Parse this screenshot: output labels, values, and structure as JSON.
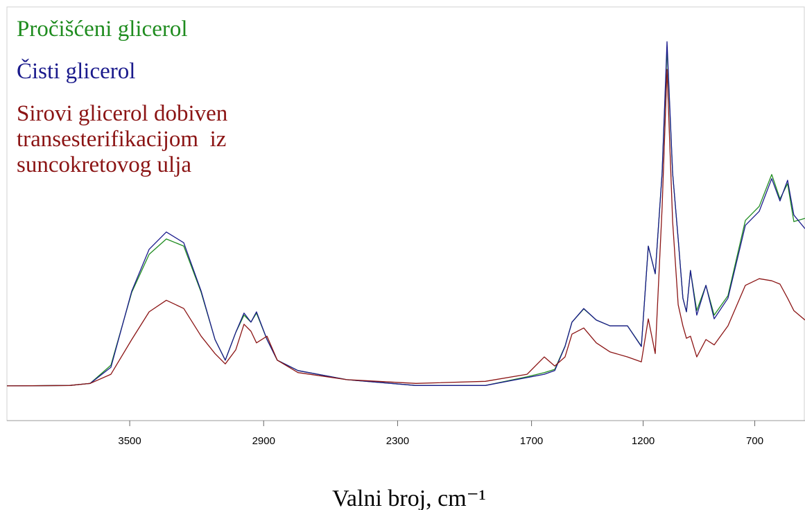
{
  "chart_data": {
    "type": "line",
    "xlabel": "Valni broj, cm⁻¹",
    "x": [
      4050,
      3770,
      3677,
      3584,
      3491,
      3413,
      3336,
      3258,
      3180,
      3118,
      3072,
      3025,
      2988,
      2957,
      2932,
      2885,
      2839,
      2746,
      2528,
      2218,
      1907,
      1720,
      1643,
      1596,
      1550,
      1519,
      1466,
      1410,
      1348,
      1270,
      1208,
      1177,
      1146,
      1115,
      1093,
      1068,
      1043,
      1022,
      1006,
      988,
      960,
      919,
      882,
      820,
      742,
      680,
      624,
      587,
      553,
      525,
      475
    ],
    "series": [
      {
        "name": "Pročišćeni glicerol",
        "color": "#1f8c1f",
        "values": [
          8.4,
          8.5,
          9.0,
          13.4,
          31.0,
          40.2,
          43.9,
          42.2,
          31.0,
          19.6,
          14.6,
          21.3,
          25.5,
          23.8,
          26.0,
          19.6,
          14.6,
          12.1,
          9.9,
          8.5,
          8.5,
          10.6,
          11.6,
          12.4,
          18.0,
          23.8,
          27.0,
          24.3,
          22.9,
          22.9,
          18.0,
          42.2,
          35.5,
          59.8,
          89.9,
          59.8,
          43.9,
          29.6,
          26.3,
          36.3,
          26.6,
          32.7,
          25.5,
          30.2,
          48.4,
          51.8,
          59.5,
          53.6,
          57.3,
          48.1,
          48.9
        ]
      },
      {
        "name": "Čisti glicerol",
        "color": "#1a1a8c",
        "values": [
          8.4,
          8.5,
          9.0,
          12.9,
          31.3,
          41.4,
          45.6,
          43.0,
          31.3,
          19.6,
          14.6,
          21.3,
          26.0,
          23.8,
          26.3,
          19.6,
          14.6,
          12.1,
          9.9,
          8.5,
          8.5,
          10.4,
          11.2,
          12.1,
          17.9,
          23.8,
          27.1,
          24.3,
          22.9,
          22.9,
          17.9,
          42.2,
          35.5,
          59.8,
          91.6,
          59.8,
          43.9,
          29.6,
          26.3,
          36.3,
          25.5,
          32.7,
          24.6,
          29.6,
          47.2,
          50.6,
          58.5,
          53.1,
          58.1,
          49.7,
          46.4
        ]
      },
      {
        "name": "Sirovi glicerol dobiven transesterifikacijom  iz suncokretovog ulja",
        "color": "#8b1414",
        "values": [
          8.4,
          8.5,
          9.0,
          11.2,
          19.6,
          26.3,
          29.1,
          27.1,
          20.4,
          16.2,
          13.7,
          17.1,
          23.3,
          21.6,
          18.8,
          20.4,
          14.6,
          11.6,
          9.9,
          9.0,
          9.5,
          11.2,
          15.4,
          13.2,
          15.4,
          20.9,
          22.4,
          18.8,
          16.6,
          15.4,
          14.2,
          24.6,
          16.2,
          51.4,
          84.9,
          48.1,
          28.0,
          22.9,
          19.9,
          20.4,
          15.4,
          19.6,
          18.3,
          22.9,
          32.7,
          34.3,
          33.8,
          33.0,
          29.6,
          26.6,
          24.3
        ]
      }
    ],
    "xlim": [
      4050,
      475
    ],
    "xticks": [
      3500,
      2900,
      2300,
      1700,
      1200,
      700
    ],
    "ylim": [
      0,
      100
    ]
  }
}
